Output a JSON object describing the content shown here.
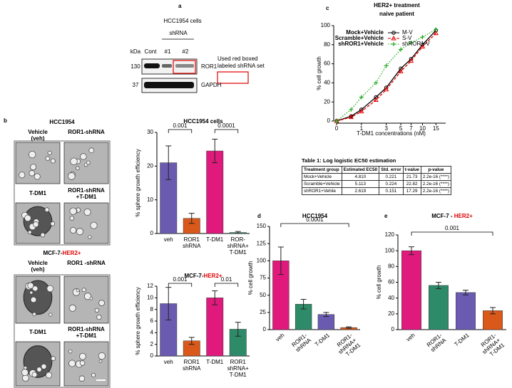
{
  "panel_labels": [
    "a",
    "b",
    "c",
    "d",
    "e"
  ],
  "western_blot": {
    "title": "HCC1954 cells",
    "group_label": "shRNA",
    "unit_label": "kDa",
    "lanes": [
      "Cont",
      "#1",
      "#2"
    ],
    "markers": [
      "130",
      "37"
    ],
    "proteins": [
      "ROR1",
      "GAPDH"
    ],
    "legend": [
      "Used red boxed",
      "labeled shRNA set"
    ]
  },
  "micrographs": {
    "hcc_header": [
      {
        "text": "HCC1954",
        "color": "#000000"
      }
    ],
    "hcc_labels": [
      [
        "Vehicle",
        "(veh)"
      ],
      [
        "ROR1-shRNA"
      ],
      [
        "T-DM1"
      ],
      [
        "ROR1-shRNA",
        "+T-DM1"
      ]
    ],
    "mcf_header": [
      {
        "text": "MCF-7-",
        "color": "#000000"
      },
      {
        "text": "HER2+",
        "color": "#e00000"
      }
    ],
    "mcf_labels": [
      [
        "Vehicle",
        "(veh)"
      ],
      [
        "ROR1 -shRNA"
      ],
      [
        "T-DM1"
      ],
      [
        "ROR1-shRNA",
        "+T-DM1"
      ]
    ]
  },
  "table": {
    "caption": "Table 1: Log logistic EC50 estimation",
    "header": [
      "Treatment group",
      "Estimated EC50",
      "Std. error",
      "t-value",
      "p-value"
    ],
    "rows": [
      [
        "Mock+Vehicle",
        "4.810",
        "0.221",
        "21.73",
        "2.2e-16 (****)"
      ],
      [
        "Scramble+Vehicle",
        "5.113",
        "0.224",
        "22.82",
        "2.2e-16 (****)"
      ],
      [
        "shROR1+Vehile",
        "2.619",
        "0.151",
        "17.29",
        "2.2e-16 (****)"
      ]
    ]
  },
  "chart_data": [
    {
      "type": "bar",
      "title": [
        {
          "text": "HCC1954 cells",
          "color": "#000000"
        }
      ],
      "y_label": "% sphere growth efficiency",
      "categories": [
        [
          "veh"
        ],
        [
          "ROR1",
          "shRNA"
        ],
        [
          "T-DM1"
        ],
        [
          "ROR-",
          "shRNA+",
          "T-DM1"
        ]
      ],
      "values": [
        21,
        4.5,
        24.5,
        0.3
      ],
      "errors": [
        5,
        1.5,
        3.5,
        0.3
      ],
      "colors": [
        "#6a5bb0",
        "#d9581a",
        "#e0197d",
        "#2e8b6a"
      ],
      "ylim": [
        0,
        30
      ],
      "yticks": [
        0,
        10,
        20,
        30
      ],
      "label_rotation": 0,
      "brackets": [
        {
          "label": "0.001",
          "from": 0,
          "to": 1
        },
        {
          "label": "0.0001",
          "from": 2,
          "to": 3
        }
      ]
    },
    {
      "type": "bar",
      "title": [
        {
          "text": "MCF-7-",
          "color": "#000000"
        },
        {
          "text": "HER2+",
          "color": "#e00000"
        }
      ],
      "y_label": "% sphere growth efficiency",
      "categories": [
        [
          "veh"
        ],
        [
          "ROR1",
          "shRNA"
        ],
        [
          "T-DM1"
        ],
        [
          "ROR1",
          "shRNA+",
          "T-DM1"
        ]
      ],
      "values": [
        9,
        2.6,
        10,
        4.6
      ],
      "errors": [
        2.8,
        0.6,
        1.2,
        1.2
      ],
      "colors": [
        "#6a5bb0",
        "#d9581a",
        "#e0197d",
        "#2e8b6a"
      ],
      "ylim": [
        0,
        12
      ],
      "yticks": [
        0,
        2,
        4,
        6,
        8,
        10,
        12
      ],
      "label_rotation": 0,
      "brackets": [
        {
          "label": "0.001",
          "from": 0,
          "to": 1
        },
        {
          "label": "0.01",
          "from": 2,
          "to": 3
        }
      ]
    },
    {
      "type": "line",
      "title": [
        {
          "text": "HER2+ treatment",
          "color": "#000000"
        },
        {
          "text": "naive   patient",
          "color": "#000000"
        }
      ],
      "x_label": "T-DM1 concentrations (nM)",
      "y_label": "% cell growth",
      "x": [
        0,
        0.5,
        1,
        2,
        3,
        5,
        7,
        10,
        15
      ],
      "xscale": "log1p",
      "series": [
        {
          "name": "Mock+Vehicle",
          "legend_key": "M-V",
          "color": "#000000",
          "marker": "circle",
          "dash": "solid",
          "values": [
            0,
            5,
            12,
            25,
            35,
            55,
            65,
            80,
            95
          ]
        },
        {
          "name": "Scramble+Vehicle",
          "legend_key": "S-V",
          "color": "#e00000",
          "marker": "triangle",
          "dash": "dashed",
          "values": [
            0,
            4,
            10,
            22,
            33,
            52,
            63,
            78,
            92
          ]
        },
        {
          "name": "shROR1+Vehicle",
          "legend_key": "shROR1-V",
          "color": "#22aa22",
          "marker": "plus",
          "dash": "dotted",
          "values": [
            0,
            12,
            25,
            40,
            58,
            75,
            82,
            88,
            96
          ]
        }
      ],
      "xlim": [
        0,
        20
      ],
      "xticks": [
        0,
        1,
        3,
        5,
        7,
        10,
        15
      ],
      "ylim": [
        0,
        100
      ],
      "yticks": [
        0,
        20,
        40,
        60,
        80,
        100
      ]
    },
    {
      "type": "bar",
      "title": [
        {
          "text": "HCC1954",
          "color": "#000000"
        }
      ],
      "y_label": "% cell growth",
      "categories": [
        [
          "veh"
        ],
        [
          "ROR1-",
          "shRNA"
        ],
        [
          "T-DM1"
        ],
        [
          "ROR1-",
          "shRNA+",
          "T-DM1"
        ]
      ],
      "values": [
        100,
        37,
        22,
        3
      ],
      "errors": [
        20,
        7,
        3,
        1
      ],
      "colors": [
        "#e0197d",
        "#2e8b6a",
        "#6a5bb0",
        "#d9581a"
      ],
      "ylim": [
        0,
        150
      ],
      "yticks": [
        0,
        25,
        50,
        75,
        100,
        125,
        150
      ],
      "label_rotation": -40,
      "brackets": [
        {
          "label": "0.0001",
          "from": 0,
          "to": 3
        }
      ]
    },
    {
      "type": "bar",
      "title": [
        {
          "text": "MCF-7 - ",
          "color": "#000000"
        },
        {
          "text": "HER2+",
          "color": "#e00000"
        }
      ],
      "y_label": "% cell growth",
      "categories": [
        [
          "veh"
        ],
        [
          "ROR1-",
          "shRNA"
        ],
        [
          "T-DM1"
        ],
        [
          "ROR1-",
          "shRNA+",
          "T-DM1"
        ]
      ],
      "values": [
        100,
        56,
        47,
        24
      ],
      "errors": [
        5,
        4,
        3,
        4
      ],
      "colors": [
        "#e0197d",
        "#2e8b6a",
        "#6a5bb0",
        "#d9581a"
      ],
      "ylim": [
        0,
        120
      ],
      "yticks": [
        0,
        20,
        40,
        60,
        80,
        100,
        120
      ],
      "label_rotation": -40,
      "brackets": [
        {
          "label": "0.001",
          "from": 0,
          "to": 3
        }
      ]
    }
  ]
}
